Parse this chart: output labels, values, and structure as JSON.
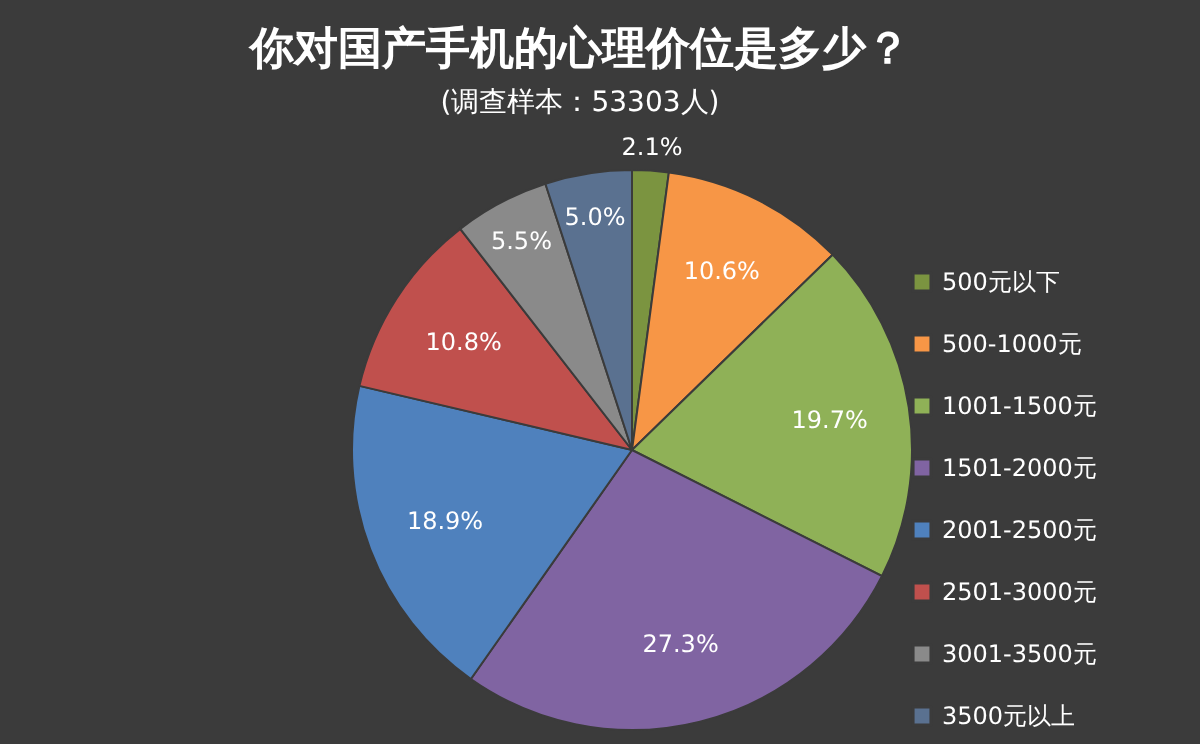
{
  "chart_data": {
    "type": "pie",
    "title": "你对国产手机的心理价位是多少？",
    "subtitle": "(调查样本：53303人)",
    "categories": [
      "500元以下",
      "500-1000元",
      "1001-1500元",
      "1501-2000元",
      "2001-2500元",
      "2501-3000元",
      "3001-3500元",
      "3500元以上"
    ],
    "values": [
      2.1,
      10.6,
      19.7,
      27.3,
      18.9,
      10.8,
      5.5,
      5.0
    ],
    "colors": [
      "#7b9440",
      "#f79646",
      "#8fb157",
      "#8064a2",
      "#4f81bd",
      "#c0504d",
      "#8a8a8a",
      "#5a7190"
    ],
    "value_labels": [
      "2.1%",
      "10.6%",
      "19.7%",
      "27.3%",
      "18.9%",
      "10.8%",
      "5.5%",
      "5.0%"
    ],
    "legend": "right"
  }
}
